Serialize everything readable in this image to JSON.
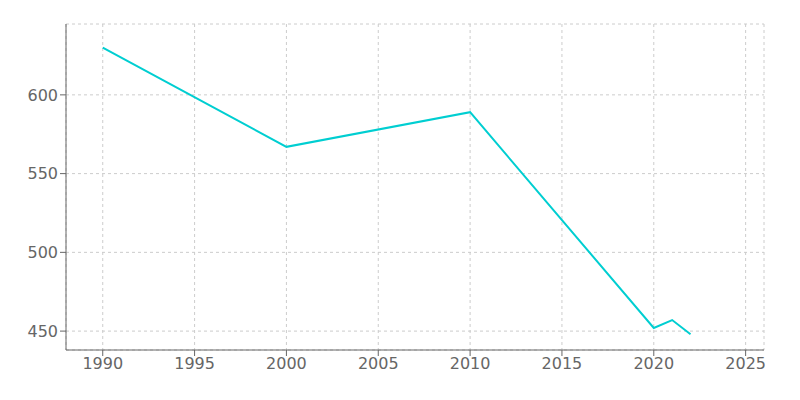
{
  "chart_data": {
    "type": "line",
    "x": [
      1990,
      2000,
      2010,
      2020,
      2021,
      2022
    ],
    "values": [
      630,
      567,
      589,
      452,
      457,
      448
    ],
    "color": "#00CED1",
    "xlim": [
      1988,
      2026
    ],
    "ylim": [
      438,
      645
    ],
    "xticks": [
      1990,
      1995,
      2000,
      2005,
      2010,
      2015,
      2020,
      2025
    ],
    "yticks": [
      450,
      500,
      550,
      600
    ],
    "grid": true
  }
}
